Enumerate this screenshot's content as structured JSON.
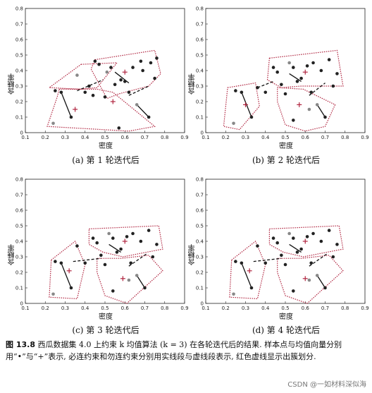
{
  "figure": {
    "number": "图 13.8",
    "caption_text": "西瓜数据集 4.0 上约束 k 均值算法 (k = 3) 在各轮迭代后的结果. 样本点与均值向量分别用“•”与“+”表示, 必连约束和勿连约束分别用实线段与虚线段表示, 红色虚线显示出簇划分."
  },
  "watermark": "CSDN @一如材料深似海",
  "colors": {
    "cluster_border": "#b0243f",
    "mean": "#b0243f",
    "point": "#222222",
    "gray_point": "#888888"
  },
  "chart_data": [
    {
      "type": "scatter",
      "subtitle": "(a) 第 1 轮迭代后",
      "xlabel": "密度",
      "ylabel": "含糖率",
      "xlim": [
        0.1,
        0.9
      ],
      "ylim": [
        0,
        0.8
      ],
      "xticks": [
        "0.1",
        "0.2",
        "0.3",
        "0.4",
        "0.5",
        "0.6",
        "0.7",
        "0.8",
        "0.9"
      ],
      "yticks": [
        "0",
        "0.1",
        "0.2",
        "0.3",
        "0.4",
        "0.5",
        "0.6",
        "0.7",
        "0.8"
      ],
      "points": [
        [
          0.25,
          0.27
        ],
        [
          0.28,
          0.26
        ],
        [
          0.33,
          0.1
        ],
        [
          0.36,
          0.37
        ],
        [
          0.4,
          0.26
        ],
        [
          0.42,
          0.3
        ],
        [
          0.44,
          0.24
        ],
        [
          0.45,
          0.46
        ],
        [
          0.47,
          0.44
        ],
        [
          0.5,
          0.23
        ],
        [
          0.51,
          0.39
        ],
        [
          0.53,
          0.42
        ],
        [
          0.55,
          0.31
        ],
        [
          0.58,
          0.34
        ],
        [
          0.6,
          0.33
        ],
        [
          0.62,
          0.26
        ],
        [
          0.64,
          0.42
        ],
        [
          0.66,
          0.18
        ],
        [
          0.68,
          0.46
        ],
        [
          0.69,
          0.4
        ],
        [
          0.72,
          0.1
        ],
        [
          0.73,
          0.45
        ],
        [
          0.75,
          0.35
        ],
        [
          0.76,
          0.48
        ],
        [
          0.24,
          0.06
        ],
        [
          0.57,
          0.03
        ]
      ],
      "means": [
        [
          0.35,
          0.15
        ],
        [
          0.6,
          0.39
        ],
        [
          0.54,
          0.2
        ]
      ],
      "must_link": [
        [
          [
            0.28,
            0.26
          ],
          [
            0.33,
            0.1
          ]
        ],
        [
          [
            0.55,
            0.39
          ],
          [
            0.62,
            0.32
          ]
        ],
        [
          [
            0.66,
            0.18
          ],
          [
            0.72,
            0.1
          ]
        ]
      ],
      "cannot_link": [
        [
          [
            0.36,
            0.27
          ],
          [
            0.49,
            0.34
          ]
        ],
        [
          [
            0.62,
            0.24
          ],
          [
            0.72,
            0.3
          ]
        ]
      ],
      "clusters": [
        [
          [
            0.38,
            0.44
          ],
          [
            0.56,
            0.45
          ],
          [
            0.46,
            0.29
          ],
          [
            0.37,
            0.28
          ],
          [
            0.22,
            0.29
          ]
        ],
        [
          [
            0.45,
            0.47
          ],
          [
            0.75,
            0.53
          ],
          [
            0.78,
            0.38
          ],
          [
            0.72,
            0.3
          ],
          [
            0.57,
            0.25
          ],
          [
            0.51,
            0.22
          ],
          [
            0.43,
            0.41
          ]
        ],
        [
          [
            0.27,
            0.28
          ],
          [
            0.46,
            0.28
          ],
          [
            0.54,
            0.26
          ],
          [
            0.75,
            0.04
          ],
          [
            0.62,
            0.01
          ],
          [
            0.21,
            0.04
          ],
          [
            0.26,
            0.23
          ]
        ]
      ]
    },
    {
      "type": "scatter",
      "subtitle": "(b) 第 2 轮迭代后",
      "xlabel": "密度",
      "ylabel": "含糖率",
      "xlim": [
        0.1,
        0.9
      ],
      "ylim": [
        0,
        0.8
      ],
      "xticks": [
        "0.1",
        "0.2",
        "0.3",
        "0.4",
        "0.5",
        "0.6",
        "0.7",
        "0.8",
        "0.9"
      ],
      "yticks": [
        "0",
        "0.1",
        "0.2",
        "0.3",
        "0.4",
        "0.5",
        "0.6",
        "0.7",
        "0.8"
      ],
      "points": [
        [
          0.25,
          0.27
        ],
        [
          0.28,
          0.26
        ],
        [
          0.33,
          0.1
        ],
        [
          0.24,
          0.06
        ],
        [
          0.36,
          0.29
        ],
        [
          0.4,
          0.26
        ],
        [
          0.44,
          0.42
        ],
        [
          0.46,
          0.39
        ],
        [
          0.48,
          0.31
        ],
        [
          0.5,
          0.25
        ],
        [
          0.52,
          0.45
        ],
        [
          0.54,
          0.42
        ],
        [
          0.56,
          0.33
        ],
        [
          0.58,
          0.35
        ],
        [
          0.61,
          0.43
        ],
        [
          0.63,
          0.26
        ],
        [
          0.64,
          0.45
        ],
        [
          0.66,
          0.18
        ],
        [
          0.68,
          0.4
        ],
        [
          0.7,
          0.1
        ],
        [
          0.72,
          0.47
        ],
        [
          0.74,
          0.3
        ],
        [
          0.76,
          0.38
        ],
        [
          0.54,
          0.08
        ],
        [
          0.62,
          0.15
        ]
      ],
      "means": [
        [
          0.3,
          0.18
        ],
        [
          0.6,
          0.39
        ],
        [
          0.57,
          0.18
        ]
      ],
      "must_link": [
        [
          [
            0.28,
            0.26
          ],
          [
            0.33,
            0.1
          ]
        ],
        [
          [
            0.52,
            0.38
          ],
          [
            0.58,
            0.33
          ]
        ],
        [
          [
            0.66,
            0.18
          ],
          [
            0.7,
            0.1
          ]
        ]
      ],
      "cannot_link": [
        [
          [
            0.36,
            0.29
          ],
          [
            0.44,
            0.33
          ]
        ],
        [
          [
            0.62,
            0.24
          ],
          [
            0.7,
            0.32
          ]
        ]
      ],
      "clusters": [
        [
          [
            0.21,
            0.29
          ],
          [
            0.35,
            0.32
          ],
          [
            0.37,
            0.17
          ],
          [
            0.27,
            0.02
          ],
          [
            0.19,
            0.04
          ]
        ],
        [
          [
            0.42,
            0.48
          ],
          [
            0.76,
            0.53
          ],
          [
            0.79,
            0.3
          ],
          [
            0.58,
            0.3
          ],
          [
            0.48,
            0.29
          ],
          [
            0.41,
            0.34
          ]
        ],
        [
          [
            0.46,
            0.29
          ],
          [
            0.59,
            0.28
          ],
          [
            0.75,
            0.18
          ],
          [
            0.7,
            0.04
          ],
          [
            0.6,
            0.01
          ],
          [
            0.5,
            0.05
          ],
          [
            0.46,
            0.2
          ]
        ]
      ]
    },
    {
      "type": "scatter",
      "subtitle": "(c) 第 3 轮迭代后",
      "xlabel": "密度",
      "ylabel": "含糖率",
      "xlim": [
        0.1,
        0.9
      ],
      "ylim": [
        0,
        0.8
      ],
      "xticks": [
        "0.1",
        "0.2",
        "0.3",
        "0.4",
        "0.5",
        "0.6",
        "0.7",
        "0.8",
        "0.9"
      ],
      "yticks": [
        "0",
        "0.1",
        "0.2",
        "0.3",
        "0.4",
        "0.5",
        "0.6",
        "0.7",
        "0.8"
      ],
      "points": [
        [
          0.25,
          0.27
        ],
        [
          0.28,
          0.26
        ],
        [
          0.33,
          0.1
        ],
        [
          0.24,
          0.06
        ],
        [
          0.36,
          0.37
        ],
        [
          0.4,
          0.26
        ],
        [
          0.44,
          0.42
        ],
        [
          0.46,
          0.39
        ],
        [
          0.48,
          0.31
        ],
        [
          0.5,
          0.25
        ],
        [
          0.52,
          0.45
        ],
        [
          0.54,
          0.42
        ],
        [
          0.56,
          0.33
        ],
        [
          0.58,
          0.35
        ],
        [
          0.61,
          0.43
        ],
        [
          0.63,
          0.26
        ],
        [
          0.64,
          0.45
        ],
        [
          0.66,
          0.18
        ],
        [
          0.68,
          0.4
        ],
        [
          0.7,
          0.1
        ],
        [
          0.72,
          0.47
        ],
        [
          0.74,
          0.3
        ],
        [
          0.76,
          0.38
        ],
        [
          0.54,
          0.08
        ],
        [
          0.62,
          0.15
        ]
      ],
      "means": [
        [
          0.32,
          0.21
        ],
        [
          0.6,
          0.4
        ],
        [
          0.59,
          0.16
        ]
      ],
      "must_link": [
        [
          [
            0.28,
            0.26
          ],
          [
            0.33,
            0.1
          ]
        ],
        [
          [
            0.52,
            0.38
          ],
          [
            0.58,
            0.33
          ]
        ],
        [
          [
            0.66,
            0.18
          ],
          [
            0.7,
            0.1
          ]
        ]
      ],
      "cannot_link": [
        [
          [
            0.34,
            0.27
          ],
          [
            0.48,
            0.29
          ]
        ],
        [
          [
            0.62,
            0.24
          ],
          [
            0.71,
            0.32
          ]
        ]
      ],
      "clusters": [
        [
          [
            0.23,
            0.28
          ],
          [
            0.35,
            0.4
          ],
          [
            0.4,
            0.25
          ],
          [
            0.36,
            0.03
          ],
          [
            0.22,
            0.04
          ]
        ],
        [
          [
            0.42,
            0.48
          ],
          [
            0.77,
            0.5
          ],
          [
            0.79,
            0.35
          ],
          [
            0.59,
            0.3
          ],
          [
            0.49,
            0.33
          ],
          [
            0.42,
            0.38
          ]
        ],
        [
          [
            0.46,
            0.29
          ],
          [
            0.58,
            0.29
          ],
          [
            0.72,
            0.31
          ],
          [
            0.79,
            0.21
          ],
          [
            0.61,
            0.0
          ],
          [
            0.5,
            0.05
          ],
          [
            0.46,
            0.2
          ]
        ]
      ]
    },
    {
      "type": "scatter",
      "subtitle": "(d) 第 4 轮迭代后",
      "xlabel": "密度",
      "ylabel": "含糖率",
      "xlim": [
        0.1,
        0.9
      ],
      "ylim": [
        0,
        0.8
      ],
      "xticks": [
        "0.1",
        "0.2",
        "0.3",
        "0.4",
        "0.5",
        "0.6",
        "0.7",
        "0.8",
        "0.9"
      ],
      "yticks": [
        "0",
        "0.1",
        "0.2",
        "0.3",
        "0.4",
        "0.5",
        "0.6",
        "0.7",
        "0.8"
      ],
      "points": [
        [
          0.25,
          0.27
        ],
        [
          0.28,
          0.26
        ],
        [
          0.33,
          0.1
        ],
        [
          0.24,
          0.06
        ],
        [
          0.36,
          0.37
        ],
        [
          0.4,
          0.26
        ],
        [
          0.44,
          0.42
        ],
        [
          0.46,
          0.39
        ],
        [
          0.48,
          0.31
        ],
        [
          0.5,
          0.25
        ],
        [
          0.52,
          0.45
        ],
        [
          0.54,
          0.42
        ],
        [
          0.56,
          0.33
        ],
        [
          0.58,
          0.35
        ],
        [
          0.61,
          0.43
        ],
        [
          0.63,
          0.26
        ],
        [
          0.64,
          0.45
        ],
        [
          0.66,
          0.18
        ],
        [
          0.68,
          0.4
        ],
        [
          0.7,
          0.1
        ],
        [
          0.72,
          0.47
        ],
        [
          0.74,
          0.3
        ],
        [
          0.76,
          0.38
        ],
        [
          0.54,
          0.08
        ],
        [
          0.62,
          0.15
        ]
      ],
      "means": [
        [
          0.32,
          0.21
        ],
        [
          0.6,
          0.4
        ],
        [
          0.6,
          0.16
        ]
      ],
      "must_link": [
        [
          [
            0.28,
            0.26
          ],
          [
            0.33,
            0.1
          ]
        ],
        [
          [
            0.52,
            0.38
          ],
          [
            0.58,
            0.33
          ]
        ],
        [
          [
            0.66,
            0.18
          ],
          [
            0.7,
            0.1
          ]
        ]
      ],
      "cannot_link": [
        [
          [
            0.34,
            0.27
          ],
          [
            0.48,
            0.29
          ]
        ],
        [
          [
            0.62,
            0.24
          ],
          [
            0.71,
            0.32
          ]
        ]
      ],
      "clusters": [
        [
          [
            0.23,
            0.28
          ],
          [
            0.35,
            0.4
          ],
          [
            0.4,
            0.25
          ],
          [
            0.36,
            0.03
          ],
          [
            0.22,
            0.04
          ]
        ],
        [
          [
            0.42,
            0.48
          ],
          [
            0.77,
            0.5
          ],
          [
            0.79,
            0.35
          ],
          [
            0.59,
            0.3
          ],
          [
            0.49,
            0.33
          ],
          [
            0.42,
            0.38
          ]
        ],
        [
          [
            0.46,
            0.29
          ],
          [
            0.58,
            0.29
          ],
          [
            0.72,
            0.31
          ],
          [
            0.79,
            0.21
          ],
          [
            0.61,
            0.0
          ],
          [
            0.5,
            0.05
          ],
          [
            0.46,
            0.2
          ]
        ]
      ]
    }
  ]
}
